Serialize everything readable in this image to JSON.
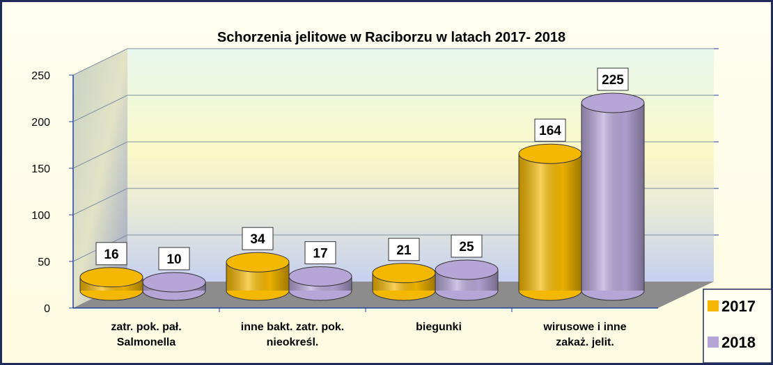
{
  "chart_data": {
    "type": "bar3d",
    "title": "Schorzenia jelitowe w Raciborzu  w latach 2017- 2018",
    "categories": [
      "zatr. pok. pał.\nSalmonella",
      "inne bakt. zatr. pok.\nnieokreśl.",
      "biegunki",
      "wirusowe i inne\nzakaż. jelit."
    ],
    "series": [
      {
        "name": "2017",
        "color": "#f5b800",
        "values": [
          16,
          34,
          21,
          164
        ]
      },
      {
        "name": "2018",
        "color": "#b6a6d8",
        "values": [
          10,
          17,
          25,
          225
        ]
      }
    ],
    "ylim": [
      0,
      250
    ],
    "yticks": [
      0,
      50,
      100,
      150,
      200,
      250
    ],
    "grid": true,
    "legend": "bottom-right"
  }
}
